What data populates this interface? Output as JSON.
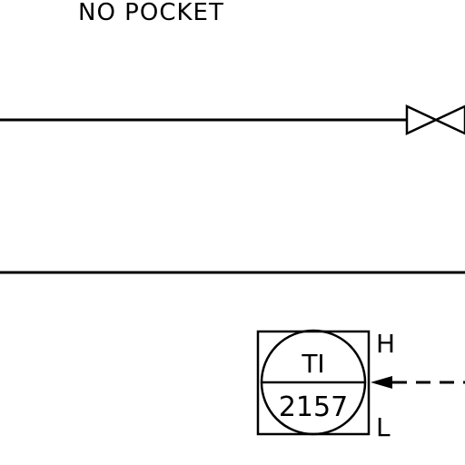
{
  "note_text": "NO POCKET",
  "instrument": {
    "tag": "TI",
    "number": "2157"
  },
  "alarm_labels": {
    "high": "H",
    "low": "L"
  },
  "colors": {
    "line": "#000000",
    "background": "#ffffff"
  }
}
